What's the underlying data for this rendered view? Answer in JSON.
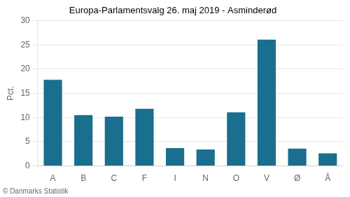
{
  "chart_data": {
    "type": "bar",
    "title": "Europa-Parlamentsvalg 26. maj 2019 - Asminderød",
    "ylabel": "Pct.",
    "annotations": [
      "© Danmarks Statistik"
    ],
    "categories": [
      "A",
      "B",
      "C",
      "F",
      "I",
      "N",
      "O",
      "V",
      "Ø",
      "Å"
    ],
    "values": [
      17.8,
      10.5,
      10.2,
      11.8,
      3.7,
      3.4,
      11.1,
      26.1,
      3.6,
      2.6
    ],
    "color": "#1a6e8e",
    "ylim": [
      0,
      30
    ],
    "yticks": [
      0,
      5,
      10,
      15,
      20,
      25,
      30
    ],
    "grid": true
  }
}
